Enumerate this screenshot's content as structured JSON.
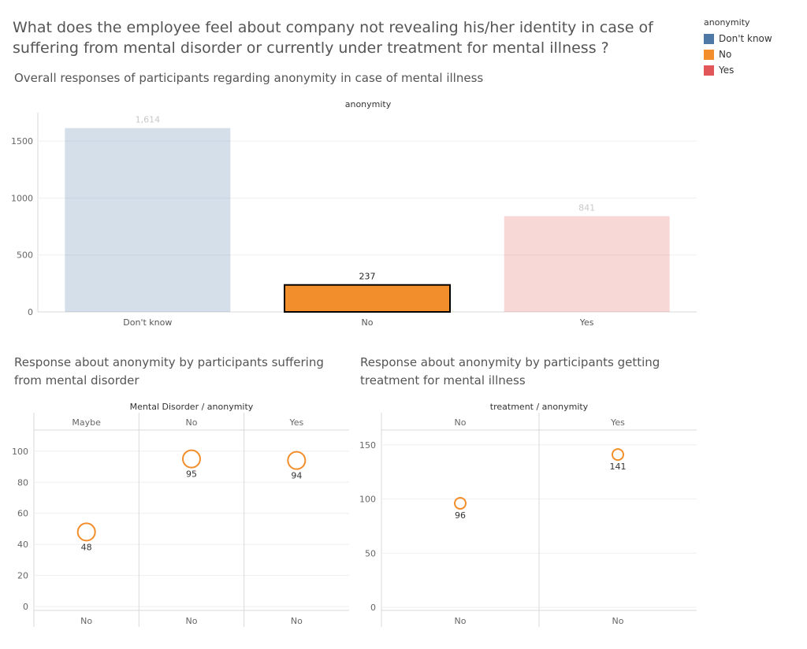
{
  "page": {
    "title": "What does the employee feel about company not revealing his/her identity in case of suffering from mental disorder or currently under treatment for mental illness ?",
    "subtitle": "Overall responses of participants regarding anonymity in case of mental illness",
    "panel2_title": "Response about anonymity by participants suffering from mental disorder",
    "panel3_title": "Response about anonymity by participants getting treatment for mental illness"
  },
  "legend": {
    "title": "anonymity",
    "items": [
      {
        "label": "Don't know",
        "color": "#4e79a7"
      },
      {
        "label": "No",
        "color": "#f28e2b"
      },
      {
        "label": "Yes",
        "color": "#e15759"
      }
    ]
  },
  "chart_data": [
    {
      "type": "bar",
      "header": "anonymity",
      "categories": [
        "Don't know",
        "No",
        "Yes"
      ],
      "values": [
        1614,
        237,
        841
      ],
      "value_labels": [
        "1,614",
        "237",
        "841"
      ],
      "highlighted": "No",
      "ylim": [
        0,
        1750
      ],
      "yticks": [
        0,
        500,
        1000,
        1500
      ],
      "grid": true
    },
    {
      "type": "scatter",
      "header": "Mental Disorder / anonymity",
      "columns": [
        "Maybe",
        "No",
        "Yes"
      ],
      "x_labels": [
        "No",
        "No",
        "No"
      ],
      "values": [
        48,
        95,
        94
      ],
      "ylim": [
        -5,
        108
      ],
      "yticks": [
        0,
        20,
        40,
        60,
        80,
        100
      ],
      "marker_color": "#f28e2b",
      "grid": true
    },
    {
      "type": "scatter",
      "header": "treatment / anonymity",
      "columns": [
        "No",
        "Yes"
      ],
      "x_labels": [
        "No",
        "No"
      ],
      "values": [
        96,
        141
      ],
      "ylim": [
        -5,
        160
      ],
      "yticks": [
        0,
        50,
        100,
        150
      ],
      "marker_color": "#f28e2b",
      "grid": true
    }
  ]
}
